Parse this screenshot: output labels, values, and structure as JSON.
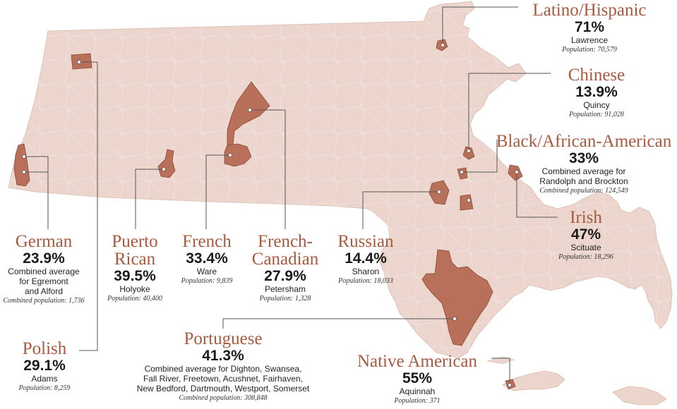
{
  "map": {
    "state_color": "#ecd5cc",
    "highlight_color": "#b8705a",
    "ethnicity_color": "#a85a3e",
    "text_color": "#1a1a1a"
  },
  "groups": {
    "latino": {
      "ethnicity": "Latino/Hispanic",
      "percent": "71%",
      "place": "Lawrence",
      "population": "Population: 70,579"
    },
    "chinese": {
      "ethnicity": "Chinese",
      "percent": "13.9%",
      "place": "Quincy",
      "population": "Population: 91,028"
    },
    "black": {
      "ethnicity": "Black/African-American",
      "percent": "33%",
      "place": "Combined average for\nRandolph and Brockton",
      "population": "Combined population: 124,549"
    },
    "irish": {
      "ethnicity": "Irish",
      "percent": "47%",
      "place": "Scituate",
      "population": "Population: 18,296"
    },
    "german": {
      "ethnicity": "German",
      "percent": "23.9%",
      "place": "Combined average\nfor Egremont\nand Alford",
      "population": "Combined population: 1,736"
    },
    "puerto_rican": {
      "ethnicity": "Puerto\nRican",
      "percent": "39.5%",
      "place": "Holyoke",
      "population": "Population: 40,400"
    },
    "french": {
      "ethnicity": "French",
      "percent": "33.4%",
      "place": "Ware",
      "population": "Population: 9,839"
    },
    "french_canadian": {
      "ethnicity": "French-\nCanadian",
      "percent": "27.9%",
      "place": "Petersham",
      "population": "Population: 1,328"
    },
    "russian": {
      "ethnicity": "Russian",
      "percent": "14.4%",
      "place": "Sharon",
      "population": "Population: 18,033"
    },
    "polish": {
      "ethnicity": "Polish",
      "percent": "29.1%",
      "place": "Adams",
      "population": "Population: 8,259"
    },
    "portuguese": {
      "ethnicity": "Portuguese",
      "percent": "41.3%",
      "place": "Combined average for Dighton, Swansea,\nFall River, Freetown, Acushnet, Fairhaven,\nNew Bedford, Dartmouth, Westport, Somerset",
      "population": "Combined population: 308,848"
    },
    "native_american": {
      "ethnicity": "Native American",
      "percent": "55%",
      "place": "Aquinnah",
      "population": "Population: 371"
    }
  }
}
